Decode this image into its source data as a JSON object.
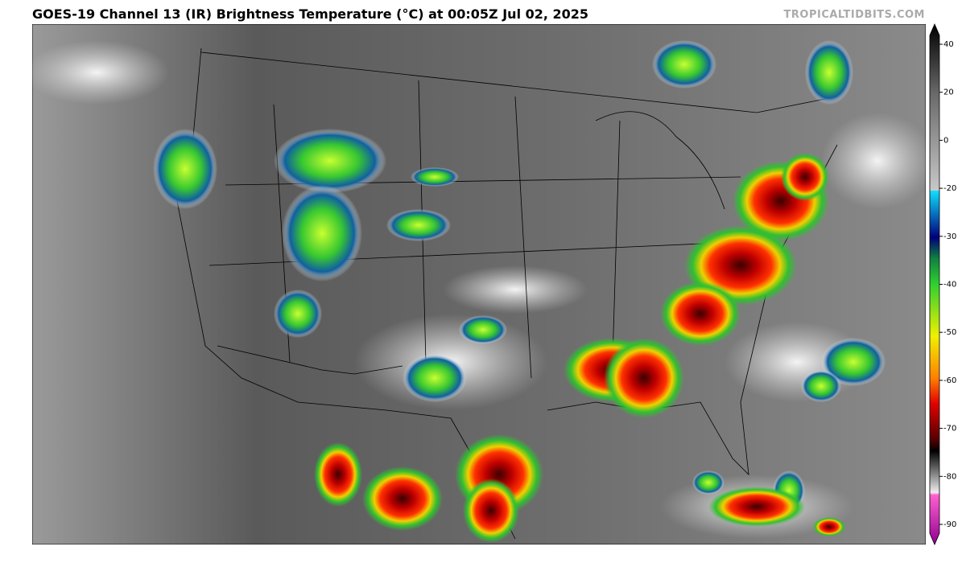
{
  "header": {
    "title": "GOES-19 Channel 13 (IR) Brightness Temperature (°C) at 00:05Z Jul 02, 2025",
    "site": "TROPICALTIDBITS.COM"
  },
  "colorbar": {
    "ticks": [
      40,
      20,
      0,
      -20,
      -30,
      -40,
      -50,
      -60,
      -70,
      -80,
      -90
    ]
  }
}
